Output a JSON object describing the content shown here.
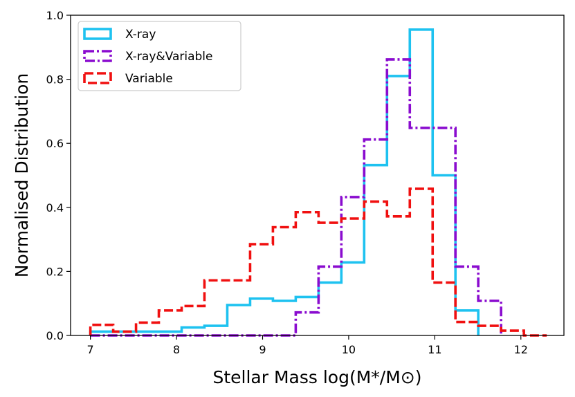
{
  "chart_data": {
    "type": "histogram",
    "xlabel": "Stellar Mass log(M*/M⊙)",
    "ylabel": "Normalised Distribution",
    "xlim": [
      6.77,
      12.5
    ],
    "ylim": [
      0.0,
      1.0
    ],
    "xticks": [
      "7",
      "8",
      "9",
      "10",
      "11",
      "12"
    ],
    "yticks": [
      "0.0",
      "0.2",
      "0.4",
      "0.6",
      "0.8",
      "1.0"
    ],
    "xtick_values": [
      7,
      8,
      9,
      10,
      11,
      12
    ],
    "ytick_values": [
      0.0,
      0.2,
      0.4,
      0.6,
      0.8,
      1.0
    ],
    "legend_position": "upper-left",
    "series": [
      {
        "name": "X-ray",
        "color": "#1ec2f0",
        "linestyle": "solid",
        "bin_edges": [
          7.0,
          7.265,
          7.53,
          7.795,
          8.06,
          8.325,
          8.59,
          8.855,
          9.12,
          9.385,
          9.65,
          9.915,
          10.18,
          10.445,
          10.71,
          10.975,
          11.24,
          11.505
        ],
        "values": [
          0.012,
          0.012,
          0.012,
          0.012,
          0.025,
          0.03,
          0.095,
          0.115,
          0.108,
          0.12,
          0.165,
          0.228,
          0.532,
          0.81,
          0.955,
          0.5,
          0.078
        ]
      },
      {
        "name": "X-ray&Variable",
        "color": "#8a0ccf",
        "linestyle": "dashdot",
        "bin_edges": [
          7.0,
          9.385,
          9.65,
          9.915,
          10.18,
          10.445,
          10.71,
          10.975,
          11.24,
          11.505,
          11.77
        ],
        "values": [
          0.0,
          0.072,
          0.215,
          0.432,
          0.612,
          0.862,
          0.648,
          0.648,
          0.215,
          0.108
        ]
      },
      {
        "name": "Variable",
        "color": "#f01010",
        "linestyle": "dashed",
        "bin_edges": [
          7.0,
          7.265,
          7.53,
          7.795,
          8.06,
          8.325,
          8.59,
          8.855,
          9.12,
          9.385,
          9.65,
          9.915,
          10.18,
          10.445,
          10.71,
          10.975,
          11.24,
          11.505,
          11.77,
          12.035,
          12.3
        ],
        "values": [
          0.033,
          0.012,
          0.04,
          0.078,
          0.092,
          0.172,
          0.172,
          0.285,
          0.338,
          0.385,
          0.352,
          0.365,
          0.418,
          0.372,
          0.458,
          0.165,
          0.042,
          0.03,
          0.015,
          0.0
        ]
      }
    ]
  }
}
